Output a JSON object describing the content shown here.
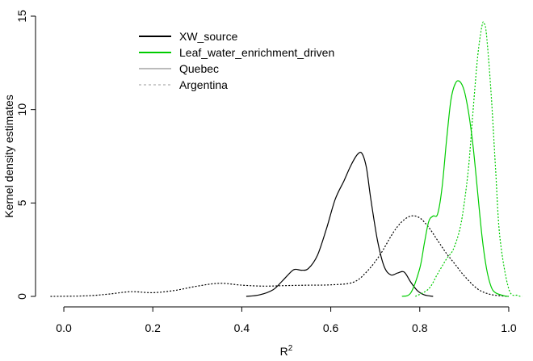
{
  "chart_data": {
    "type": "line",
    "xlabel": "R",
    "xlabel_superscript": "2",
    "ylabel": "Kernel density estimates",
    "xlim": [
      -0.04,
      1.04
    ],
    "ylim": [
      0,
      15
    ],
    "x_ticks": [
      "0.0",
      "0.2",
      "0.4",
      "0.6",
      "0.8",
      "1.0"
    ],
    "x_tick_values": [
      0.0,
      0.2,
      0.4,
      0.6,
      0.8,
      1.0
    ],
    "y_ticks": [
      "0",
      "5",
      "10",
      "15"
    ],
    "y_tick_values": [
      0,
      5,
      10,
      15
    ],
    "grid": false,
    "legend_position": "top-left",
    "legend": [
      {
        "label": "XW_source",
        "color": "#000000",
        "dash": "solid"
      },
      {
        "label": "Leaf_water_enrichment_driven",
        "color": "#00cc00",
        "dash": "solid"
      },
      {
        "label": "Quebec",
        "color": "#bbbbbb",
        "dash": "solid"
      },
      {
        "label": "Argentina",
        "color": "#999999",
        "dash": "dotted"
      }
    ],
    "series": [
      {
        "key": "xw-quebec",
        "color": "#000000",
        "dash": "solid",
        "x": [
          0.41,
          0.44,
          0.47,
          0.49,
          0.51,
          0.52,
          0.535,
          0.55,
          0.57,
          0.59,
          0.61,
          0.63,
          0.645,
          0.66,
          0.67,
          0.68,
          0.69,
          0.705,
          0.72,
          0.735,
          0.75,
          0.765,
          0.78,
          0.795,
          0.81,
          0.83
        ],
        "y": [
          0.0,
          0.08,
          0.35,
          0.8,
          1.3,
          1.45,
          1.4,
          1.5,
          2.2,
          3.6,
          5.2,
          6.2,
          7.0,
          7.6,
          7.65,
          6.9,
          5.2,
          3.0,
          1.6,
          1.15,
          1.25,
          1.3,
          0.75,
          0.3,
          0.08,
          0.0
        ]
      },
      {
        "key": "xw-argentina",
        "color": "#000000",
        "dash": "dotted",
        "x": [
          -0.03,
          0.05,
          0.1,
          0.15,
          0.2,
          0.25,
          0.3,
          0.35,
          0.4,
          0.45,
          0.5,
          0.55,
          0.6,
          0.65,
          0.68,
          0.71,
          0.74,
          0.76,
          0.78,
          0.8,
          0.82,
          0.84,
          0.86,
          0.88,
          0.9,
          0.93,
          0.96,
          1.0
        ],
        "y": [
          0.0,
          0.03,
          0.12,
          0.25,
          0.2,
          0.32,
          0.55,
          0.7,
          0.6,
          0.55,
          0.58,
          0.6,
          0.62,
          0.75,
          1.3,
          2.2,
          3.4,
          4.0,
          4.3,
          4.2,
          3.7,
          3.0,
          2.3,
          1.7,
          1.1,
          0.4,
          0.1,
          0.0
        ]
      },
      {
        "key": "leaf-quebec",
        "color": "#00cc00",
        "dash": "solid",
        "x": [
          0.76,
          0.78,
          0.8,
          0.81,
          0.82,
          0.83,
          0.84,
          0.85,
          0.86,
          0.87,
          0.88,
          0.89,
          0.9,
          0.91,
          0.92,
          0.93,
          0.94,
          0.95,
          0.96,
          0.97,
          0.99,
          1.0
        ],
        "y": [
          0.0,
          0.2,
          1.5,
          2.8,
          4.0,
          4.3,
          4.4,
          5.8,
          8.3,
          10.5,
          11.4,
          11.5,
          11.0,
          9.8,
          8.0,
          5.6,
          3.2,
          1.5,
          0.55,
          0.2,
          0.03,
          0.0
        ]
      },
      {
        "key": "leaf-argentina",
        "color": "#00cc00",
        "dash": "dotted",
        "x": [
          0.79,
          0.82,
          0.84,
          0.86,
          0.875,
          0.89,
          0.9,
          0.91,
          0.92,
          0.93,
          0.94,
          0.945,
          0.95,
          0.96,
          0.97,
          0.98,
          1.0,
          1.02,
          1.03
        ],
        "y": [
          0.0,
          0.4,
          1.2,
          2.0,
          2.5,
          3.6,
          5.0,
          7.0,
          10.0,
          12.8,
          14.5,
          14.6,
          14.0,
          11.0,
          7.0,
          3.2,
          0.4,
          0.05,
          0.0
        ]
      }
    ]
  }
}
